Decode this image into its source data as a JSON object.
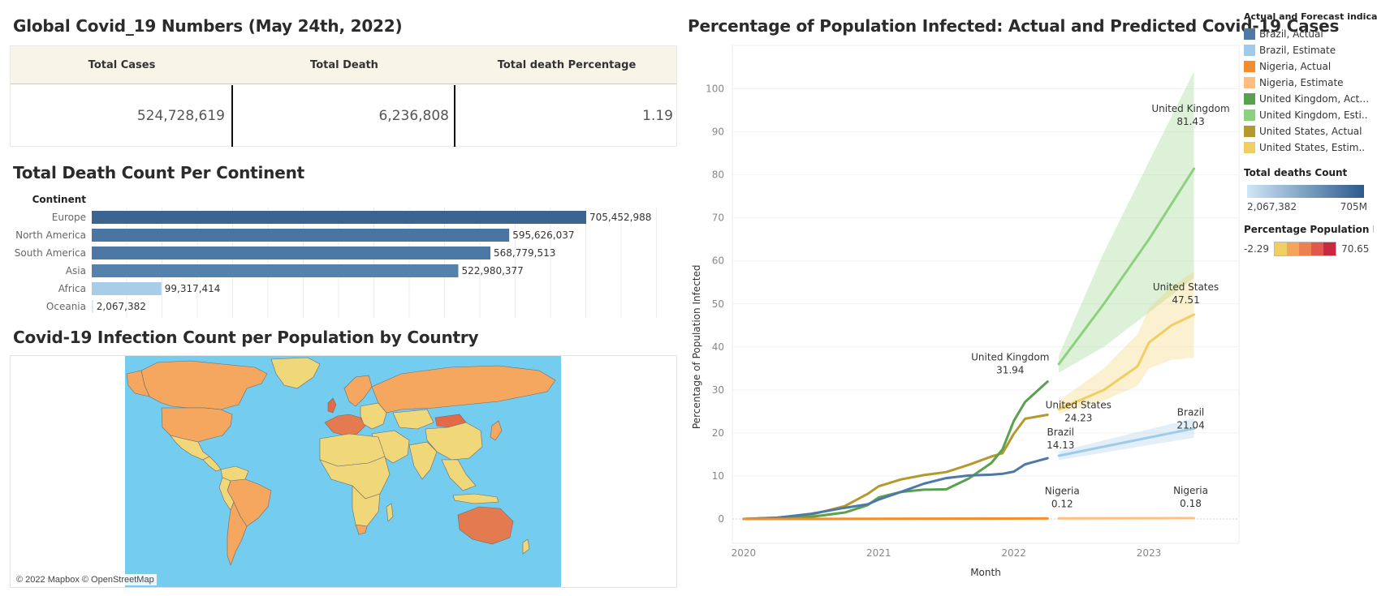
{
  "summary": {
    "title": "Global Covid_19  Numbers (May 24th, 2022)",
    "headers": [
      "Total Cases",
      "Total Death",
      "Total death Percentage"
    ],
    "values": [
      "524,728,619",
      "6,236,808",
      "1.19"
    ]
  },
  "continent_chart": {
    "title": "Total Death Count Per Continent",
    "column_header": "Continent"
  },
  "map_section": {
    "title": "Covid-19 Infection Count per Population by Country",
    "credit": "© 2022 Mapbox © OpenStreetMap"
  },
  "line_section": {
    "title": "Percentage of Population Infected: Actual and Predicted Covid-19 Cases"
  },
  "legend": {
    "title": "Actual and Forecast indicator",
    "items": [
      {
        "label": "Brazil, Actual",
        "color": "#4e79a7"
      },
      {
        "label": "Brazil, Estimate",
        "color": "#a0cbe8"
      },
      {
        "label": "Nigeria, Actual",
        "color": "#f28e2b"
      },
      {
        "label": "Nigeria, Estimate",
        "color": "#ffbe7d"
      },
      {
        "label": "United Kingdom, Actu..",
        "color": "#59a14f"
      },
      {
        "label": "United Kingdom, Esti..",
        "color": "#8cd17d"
      },
      {
        "label": "United States, Actual",
        "color": "#b6992d"
      },
      {
        "label": "United States, Estim..",
        "color": "#f1ce63"
      }
    ],
    "deaths_title": "Total deaths Count",
    "deaths_min": "2,067,382",
    "deaths_max": "705M",
    "pct_title": "Percentage Population In..",
    "pct_min": "-2.29",
    "pct_max": "70.65",
    "pct_colors": [
      "#f1ce63",
      "#f4a55a",
      "#ec8050",
      "#e0584a",
      "#c9283f"
    ]
  },
  "chart_data": [
    {
      "type": "bar",
      "title": "Total Death Count Per Continent",
      "ylabel": "Continent",
      "categories": [
        "Europe",
        "North America",
        "South America",
        "Asia",
        "Africa",
        "Oceania"
      ],
      "values": [
        705452988,
        595626037,
        568779513,
        522980377,
        99317414,
        2067382
      ],
      "value_labels": [
        "705,452,988",
        "595,626,037",
        "568,779,513",
        "522,980,377",
        "99,317,414",
        "2,067,382"
      ],
      "colors": [
        "#3b6590",
        "#4a74a1",
        "#4d77a4",
        "#5581ad",
        "#a8cde9",
        "#d7e8f5"
      ],
      "xlim": [
        0,
        800000000
      ]
    },
    {
      "type": "line",
      "title": "Percentage of Population Infected: Actual and Predicted Covid-19 Cases",
      "xlabel": "Month",
      "ylabel": "Percentage of Population Infected",
      "ylim": [
        0,
        105
      ],
      "xlim": [
        "2019-12",
        "2023-09"
      ],
      "yticks": [
        0,
        10,
        20,
        30,
        40,
        50,
        60,
        70,
        80,
        90,
        100
      ],
      "xticks": [
        "2020",
        "2021",
        "2022",
        "2023"
      ],
      "series": [
        {
          "name": "United States, Actual",
          "color": "#b6992d",
          "x": [
            "2020-01",
            "2020-04",
            "2020-07",
            "2020-10",
            "2020-12",
            "2021-01",
            "2021-03",
            "2021-05",
            "2021-07",
            "2021-09",
            "2021-11",
            "2021-12",
            "2022-01",
            "2022-02",
            "2022-04"
          ],
          "y": [
            0,
            0.3,
            1,
            3,
            5.8,
            7.6,
            9.2,
            10.2,
            10.9,
            12.6,
            14.5,
            15.3,
            19.8,
            23.3,
            24.23
          ]
        },
        {
          "name": "United Kingdom, Actual",
          "color": "#59a14f",
          "x": [
            "2020-01",
            "2020-04",
            "2020-07",
            "2020-10",
            "2020-12",
            "2021-01",
            "2021-03",
            "2021-05",
            "2021-07",
            "2021-09",
            "2021-11",
            "2021-12",
            "2022-01",
            "2022-02",
            "2022-04"
          ],
          "y": [
            0,
            0.2,
            0.5,
            1.5,
            3.2,
            5,
            6.3,
            6.8,
            6.9,
            9.4,
            13,
            16.2,
            22.8,
            27.2,
            31.94
          ]
        },
        {
          "name": "Brazil, Actual",
          "color": "#4e79a7",
          "x": [
            "2020-01",
            "2020-04",
            "2020-07",
            "2020-10",
            "2020-12",
            "2021-01",
            "2021-03",
            "2021-05",
            "2021-07",
            "2021-09",
            "2021-11",
            "2021-12",
            "2022-01",
            "2022-02",
            "2022-04"
          ],
          "y": [
            0,
            0.3,
            1.2,
            2.6,
            3.4,
            4.5,
            6.3,
            8.2,
            9.5,
            10.1,
            10.3,
            10.5,
            11,
            12.7,
            14.13
          ]
        },
        {
          "name": "Nigeria, Actual",
          "color": "#f28e2b",
          "x": [
            "2020-01",
            "2020-12",
            "2021-12",
            "2022-04"
          ],
          "y": [
            0,
            0.05,
            0.1,
            0.12
          ]
        },
        {
          "name": "United Kingdom, Estimate",
          "color": "#8cd17d",
          "x": [
            "2022-05",
            "2022-09",
            "2023-01",
            "2023-05"
          ],
          "y": [
            36,
            50,
            65,
            81.43
          ],
          "band_low": [
            34,
            40,
            48,
            56
          ],
          "band_high": [
            38,
            62,
            83,
            104
          ]
        },
        {
          "name": "United States, Estimate",
          "color": "#f1ce63",
          "x": [
            "2022-05",
            "2022-09",
            "2022-12",
            "2023-01",
            "2023-03",
            "2023-05"
          ],
          "y": [
            25.5,
            30,
            35.5,
            41,
            45,
            47.51
          ],
          "band_low": [
            24.5,
            27.5,
            31,
            35,
            37,
            37.5
          ],
          "band_high": [
            27.5,
            35,
            43,
            49,
            54,
            57.5
          ]
        },
        {
          "name": "Brazil, Estimate",
          "color": "#a0cbe8",
          "x": [
            "2022-05",
            "2023-05"
          ],
          "y": [
            14.7,
            21.04
          ],
          "band_low": [
            13.7,
            18.9
          ],
          "band_high": [
            15.7,
            23.4
          ]
        },
        {
          "name": "Nigeria, Estimate",
          "color": "#ffbe7d",
          "x": [
            "2022-05",
            "2023-05"
          ],
          "y": [
            0.13,
            0.18
          ]
        }
      ],
      "annotations": [
        {
          "name": "United Kingdom",
          "value": "31.94",
          "x": "2022-04"
        },
        {
          "name": "United States",
          "value": "24.23",
          "x": "2022-04"
        },
        {
          "name": "Brazil",
          "value": "14.13",
          "x": "2022-04"
        },
        {
          "name": "Nigeria",
          "value": "0.12",
          "x": "2022-04"
        },
        {
          "name": "United Kingdom",
          "value": "81.43",
          "x": "2023-05"
        },
        {
          "name": "United States",
          "value": "47.51",
          "x": "2023-05"
        },
        {
          "name": "Brazil",
          "value": "21.04",
          "x": "2023-05"
        },
        {
          "name": "Nigeria",
          "value": "0.18",
          "x": "2023-05"
        }
      ]
    }
  ]
}
